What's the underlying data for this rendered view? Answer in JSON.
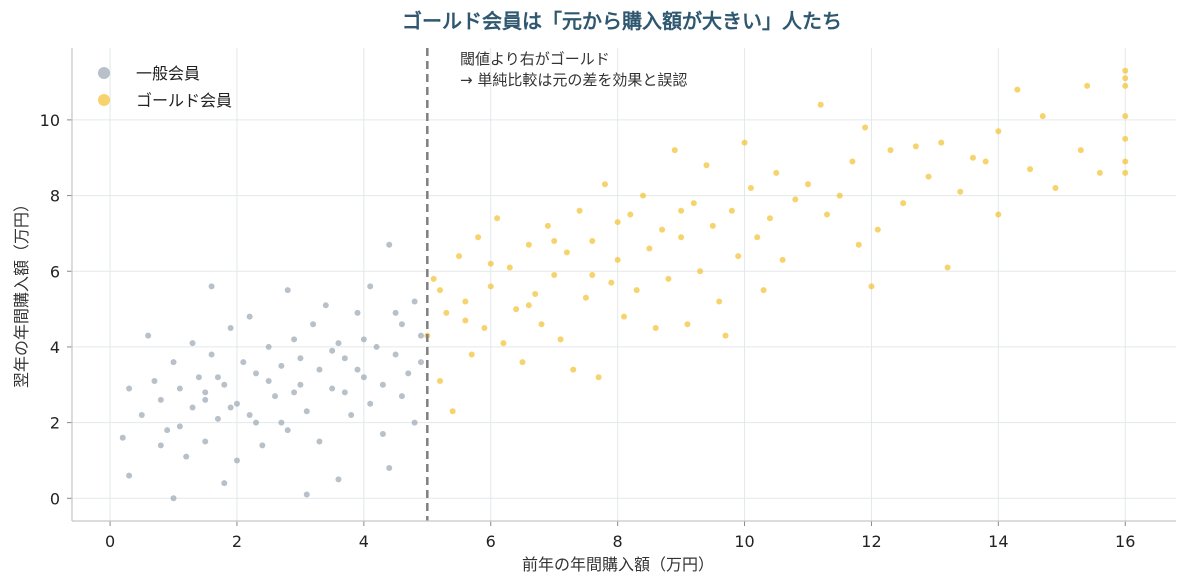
{
  "chart_data": {
    "type": "scatter",
    "title": "ゴールド会員は「元から購入額が大きい」人たち",
    "xlabel": "前年の年間購入額（万円）",
    "ylabel": "翌年の年間購入額（万円）",
    "xlim": [
      -0.6,
      16.8
    ],
    "ylim": [
      -0.6,
      11.9
    ],
    "xticks": [
      0,
      2,
      4,
      6,
      8,
      10,
      12,
      14,
      16
    ],
    "yticks": [
      0,
      2,
      4,
      6,
      8,
      10
    ],
    "grid": true,
    "legend_position": "top-left",
    "threshold": 5,
    "annotation": [
      "閾値より右がゴールド",
      "→ 単純比較は元の差を効果と誤認"
    ],
    "series": [
      {
        "name": "一般会員",
        "color": "#9aa7b2",
        "points": [
          [
            0.2,
            1.6
          ],
          [
            0.3,
            2.9
          ],
          [
            0.3,
            0.6
          ],
          [
            0.5,
            2.2
          ],
          [
            0.6,
            4.3
          ],
          [
            0.7,
            3.1
          ],
          [
            0.8,
            2.6
          ],
          [
            0.9,
            1.8
          ],
          [
            1.0,
            0.0
          ],
          [
            1.0,
            3.6
          ],
          [
            1.1,
            2.9
          ],
          [
            1.2,
            1.1
          ],
          [
            1.3,
            2.4
          ],
          [
            1.3,
            4.1
          ],
          [
            1.4,
            3.2
          ],
          [
            1.5,
            1.5
          ],
          [
            1.5,
            2.8
          ],
          [
            1.6,
            5.6
          ],
          [
            1.6,
            3.8
          ],
          [
            1.7,
            2.1
          ],
          [
            1.8,
            0.4
          ],
          [
            1.8,
            3.0
          ],
          [
            1.9,
            4.5
          ],
          [
            2.0,
            2.5
          ],
          [
            2.0,
            1.0
          ],
          [
            2.1,
            3.6
          ],
          [
            2.2,
            4.8
          ],
          [
            2.3,
            2.0
          ],
          [
            2.3,
            3.3
          ],
          [
            2.4,
            1.4
          ],
          [
            2.5,
            4.0
          ],
          [
            2.6,
            2.7
          ],
          [
            2.7,
            3.5
          ],
          [
            2.8,
            5.5
          ],
          [
            2.8,
            1.8
          ],
          [
            2.9,
            4.2
          ],
          [
            3.0,
            3.0
          ],
          [
            3.1,
            0.1
          ],
          [
            3.1,
            2.3
          ],
          [
            3.2,
            4.6
          ],
          [
            3.3,
            3.4
          ],
          [
            3.3,
            1.5
          ],
          [
            3.4,
            5.1
          ],
          [
            3.5,
            2.9
          ],
          [
            3.6,
            4.1
          ],
          [
            3.6,
            0.5
          ],
          [
            3.7,
            3.7
          ],
          [
            3.8,
            2.2
          ],
          [
            3.9,
            4.9
          ],
          [
            4.0,
            3.2
          ],
          [
            4.1,
            2.5
          ],
          [
            4.1,
            5.6
          ],
          [
            4.2,
            4.0
          ],
          [
            4.3,
            3.0
          ],
          [
            4.3,
            1.7
          ],
          [
            4.4,
            6.7
          ],
          [
            4.4,
            0.8
          ],
          [
            4.5,
            3.8
          ],
          [
            4.6,
            2.7
          ],
          [
            4.6,
            4.6
          ],
          [
            4.7,
            3.3
          ],
          [
            4.8,
            5.2
          ],
          [
            4.8,
            2.0
          ],
          [
            4.9,
            4.3
          ],
          [
            4.9,
            3.6
          ],
          [
            1.5,
            2.6
          ],
          [
            2.5,
            3.1
          ],
          [
            3.5,
            3.9
          ],
          [
            1.9,
            2.4
          ],
          [
            2.9,
            2.8
          ],
          [
            3.9,
            3.4
          ],
          [
            1.1,
            1.9
          ],
          [
            2.2,
            2.2
          ],
          [
            3.0,
            3.7
          ],
          [
            4.0,
            4.2
          ],
          [
            0.8,
            1.4
          ],
          [
            1.7,
            3.2
          ],
          [
            2.7,
            2.0
          ],
          [
            3.7,
            2.8
          ],
          [
            4.5,
            4.9
          ]
        ]
      },
      {
        "name": "ゴールド会員",
        "color": "#f2c12e",
        "points": [
          [
            5.0,
            4.3
          ],
          [
            5.1,
            5.8
          ],
          [
            5.2,
            3.1
          ],
          [
            5.3,
            4.9
          ],
          [
            5.4,
            2.3
          ],
          [
            5.5,
            6.4
          ],
          [
            5.6,
            5.2
          ],
          [
            5.7,
            3.8
          ],
          [
            5.8,
            6.9
          ],
          [
            5.9,
            4.5
          ],
          [
            6.0,
            5.6
          ],
          [
            6.1,
            7.4
          ],
          [
            6.2,
            4.1
          ],
          [
            6.3,
            6.1
          ],
          [
            6.4,
            5.0
          ],
          [
            6.5,
            3.6
          ],
          [
            6.6,
            6.7
          ],
          [
            6.7,
            5.4
          ],
          [
            6.8,
            4.6
          ],
          [
            6.9,
            7.2
          ],
          [
            7.0,
            5.9
          ],
          [
            7.1,
            4.2
          ],
          [
            7.2,
            6.5
          ],
          [
            7.3,
            3.4
          ],
          [
            7.4,
            7.6
          ],
          [
            7.5,
            5.3
          ],
          [
            7.6,
            6.8
          ],
          [
            7.7,
            3.2
          ],
          [
            7.8,
            8.3
          ],
          [
            7.9,
            5.7
          ],
          [
            8.0,
            6.3
          ],
          [
            8.1,
            4.8
          ],
          [
            8.2,
            7.5
          ],
          [
            8.3,
            5.5
          ],
          [
            8.4,
            8.0
          ],
          [
            8.5,
            6.6
          ],
          [
            8.6,
            4.5
          ],
          [
            8.7,
            7.1
          ],
          [
            8.8,
            5.8
          ],
          [
            8.9,
            9.2
          ],
          [
            9.0,
            6.9
          ],
          [
            9.1,
            4.6
          ],
          [
            9.2,
            7.8
          ],
          [
            9.3,
            6.0
          ],
          [
            9.4,
            8.8
          ],
          [
            9.5,
            7.2
          ],
          [
            9.6,
            5.2
          ],
          [
            9.7,
            4.3
          ],
          [
            9.8,
            7.6
          ],
          [
            9.9,
            6.4
          ],
          [
            10.0,
            9.4
          ],
          [
            10.1,
            8.2
          ],
          [
            10.2,
            6.9
          ],
          [
            10.3,
            5.5
          ],
          [
            10.4,
            7.4
          ],
          [
            10.5,
            8.6
          ],
          [
            10.6,
            6.3
          ],
          [
            10.8,
            7.9
          ],
          [
            11.0,
            8.3
          ],
          [
            11.2,
            10.4
          ],
          [
            11.3,
            7.5
          ],
          [
            11.5,
            8.0
          ],
          [
            11.7,
            8.9
          ],
          [
            11.8,
            6.7
          ],
          [
            11.9,
            9.8
          ],
          [
            12.0,
            5.6
          ],
          [
            12.1,
            7.1
          ],
          [
            12.3,
            9.2
          ],
          [
            12.5,
            7.8
          ],
          [
            12.7,
            9.3
          ],
          [
            12.9,
            8.5
          ],
          [
            13.1,
            9.4
          ],
          [
            13.2,
            6.1
          ],
          [
            13.4,
            8.1
          ],
          [
            13.6,
            9.0
          ],
          [
            13.8,
            8.9
          ],
          [
            14.0,
            9.7
          ],
          [
            14.0,
            7.5
          ],
          [
            14.3,
            10.8
          ],
          [
            14.5,
            8.7
          ],
          [
            14.7,
            10.1
          ],
          [
            14.9,
            8.2
          ],
          [
            15.3,
            9.2
          ],
          [
            15.4,
            10.9
          ],
          [
            15.6,
            8.6
          ],
          [
            16.0,
            11.3
          ],
          [
            16.0,
            10.9
          ],
          [
            16.0,
            10.1
          ],
          [
            16.0,
            9.5
          ],
          [
            16.0,
            8.9
          ],
          [
            16.0,
            8.6
          ],
          [
            16.0,
            11.1
          ],
          [
            5.2,
            5.5
          ],
          [
            6.0,
            6.2
          ],
          [
            7.0,
            6.8
          ],
          [
            8.0,
            7.3
          ],
          [
            9.0,
            7.6
          ],
          [
            5.6,
            4.7
          ],
          [
            6.6,
            5.1
          ],
          [
            7.6,
            5.9
          ]
        ]
      }
    ]
  }
}
